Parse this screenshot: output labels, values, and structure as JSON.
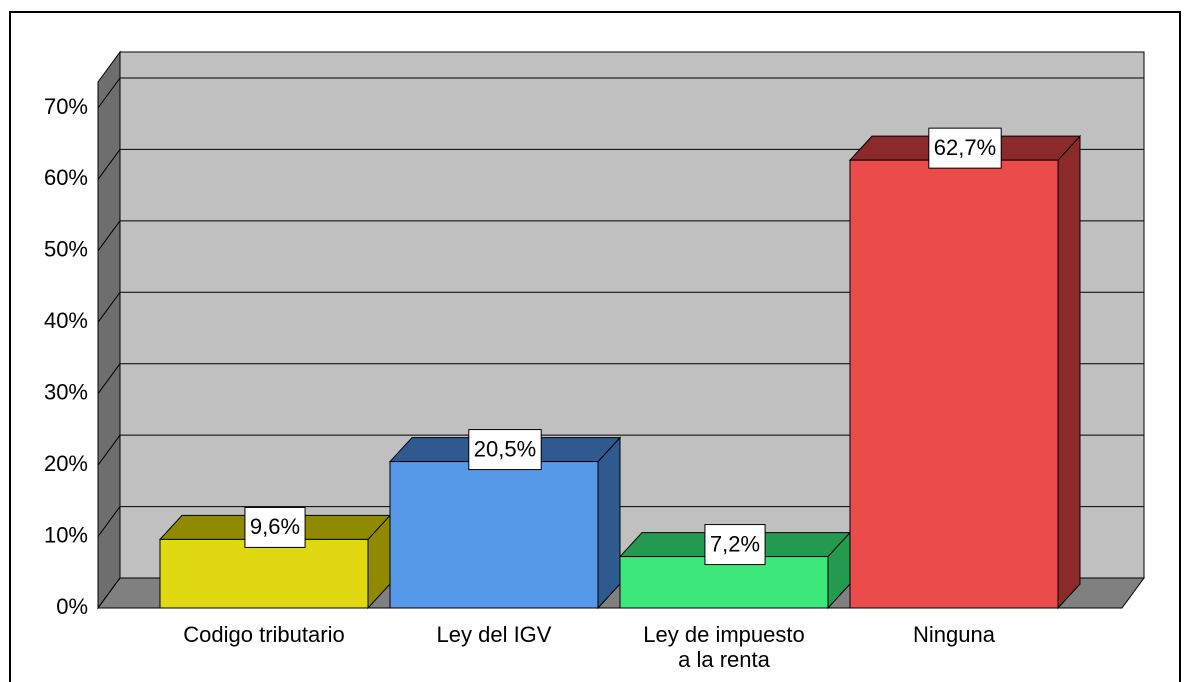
{
  "chart_data": {
    "type": "bar3d",
    "categories": [
      "Codigo tributario",
      "Ley del IGV",
      "Ley de impuesto\na la renta",
      "Ninguna"
    ],
    "values": [
      9.6,
      20.5,
      7.2,
      62.7
    ],
    "value_labels": [
      "9,6%",
      "20,5%",
      "7,2%",
      "62,7%"
    ],
    "colors": [
      "#e0d810",
      "#5599e8",
      "#3de87a",
      "#ec4b4b"
    ],
    "shade_colors": [
      "#8f8a00",
      "#2f5a90",
      "#239a50",
      "#8a2a2a"
    ],
    "ylim": [
      0,
      70
    ],
    "yticks": [
      {
        "value": 0,
        "label": "0%"
      },
      {
        "value": 10,
        "label": "10%"
      },
      {
        "value": 20,
        "label": "20%"
      },
      {
        "value": 30,
        "label": "30%"
      },
      {
        "value": 40,
        "label": "40%"
      },
      {
        "value": 50,
        "label": "50%"
      },
      {
        "value": 60,
        "label": "60%"
      },
      {
        "value": 70,
        "label": "70%"
      }
    ],
    "grid": true
  }
}
